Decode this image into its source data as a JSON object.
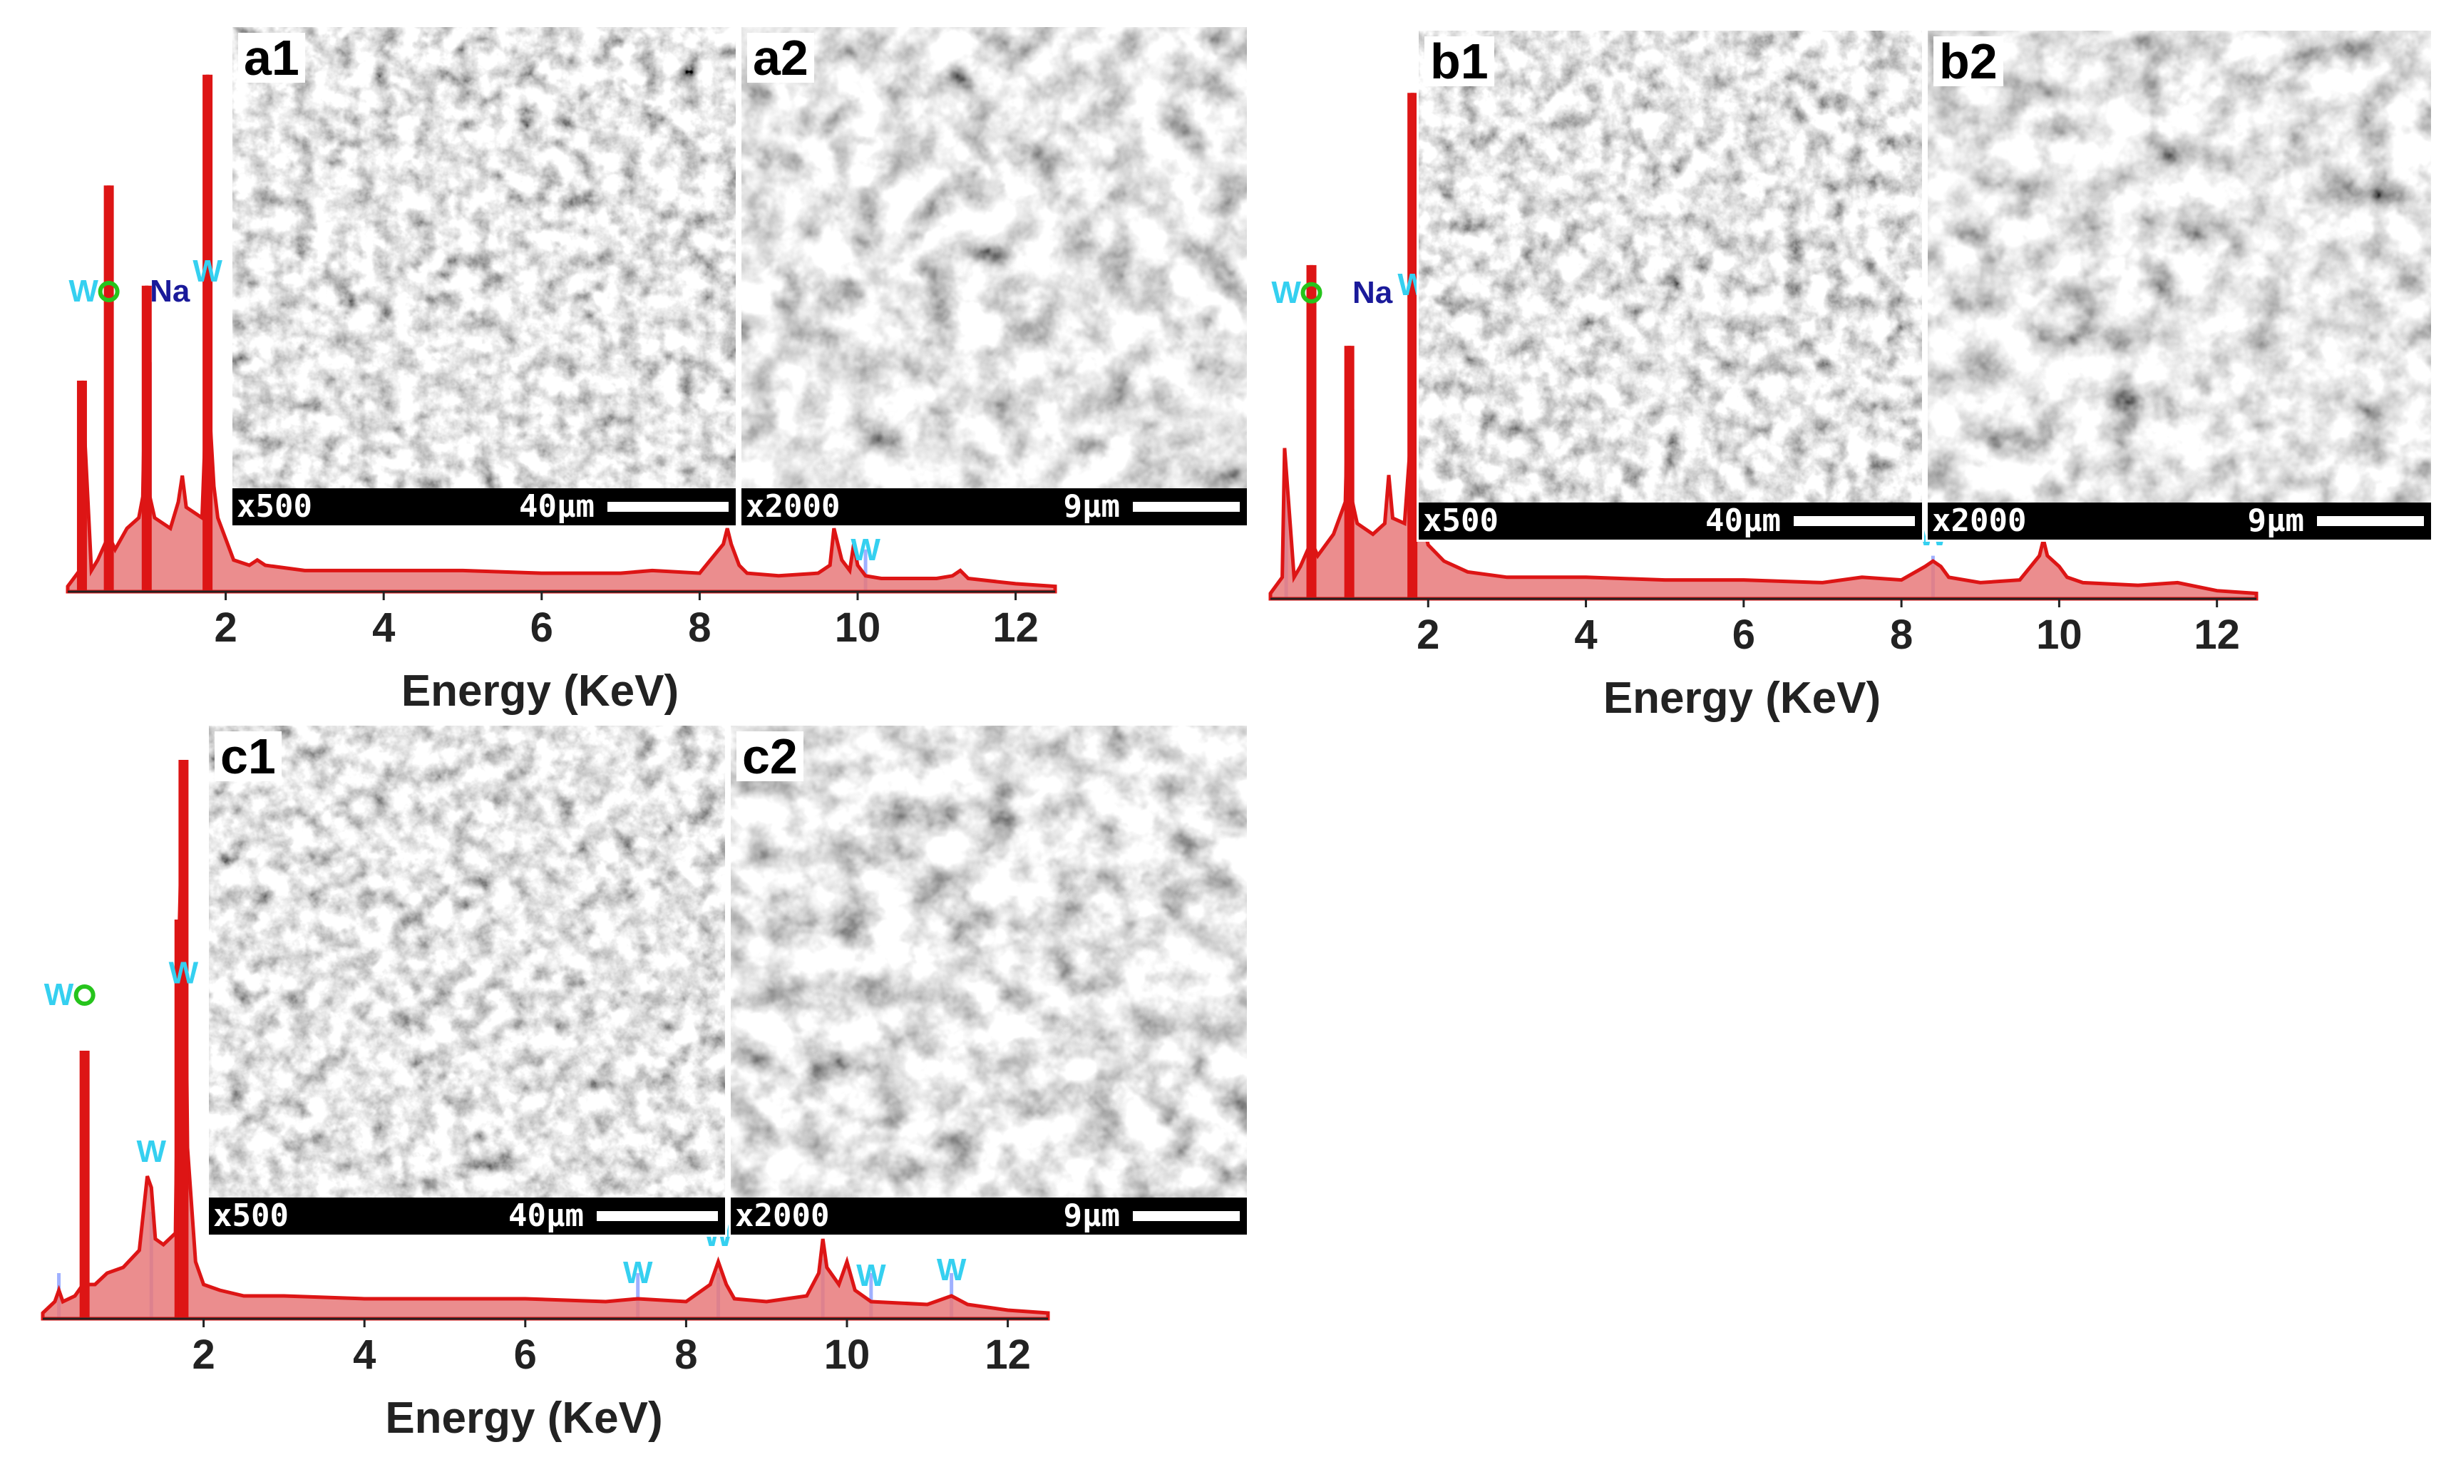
{
  "colors": {
    "spectrum": "#dd1515",
    "spectrum_fill": "#e8797a",
    "w_label": "#35d0f0",
    "o_label": "#26c41c",
    "na_label": "#1a1a9a",
    "w_line": "#9fb0ff",
    "o_line": "#e0a060",
    "na_line": "#b02070"
  },
  "chart_data": [
    {
      "id": "a",
      "type": "area",
      "xlabel": "Energy (KeV)",
      "xlim": [
        0,
        12.5
      ],
      "ylim": [
        0,
        100
      ],
      "xticks": [
        "2",
        "4",
        "6",
        "8",
        "10",
        "12"
      ],
      "spectrum": {
        "x": [
          0.0,
          0.15,
          0.18,
          0.3,
          0.38,
          0.5,
          0.52,
          0.54,
          0.6,
          0.75,
          0.9,
          0.95,
          1.0,
          1.04,
          1.1,
          1.3,
          1.4,
          1.45,
          1.5,
          1.7,
          1.74,
          1.77,
          1.8,
          1.85,
          1.9,
          2.0,
          2.1,
          2.3,
          2.4,
          2.5,
          3,
          4,
          5,
          6,
          7,
          7.4,
          8.0,
          8.3,
          8.35,
          8.4,
          8.5,
          8.6,
          9.0,
          9.5,
          9.65,
          9.7,
          9.8,
          9.9,
          9.95,
          10.0,
          10.1,
          10.3,
          11.0,
          11.2,
          11.3,
          11.4,
          12.0,
          12.5
        ],
        "y": [
          1,
          4,
          40,
          4,
          6,
          10,
          77,
          10,
          8,
          12,
          14,
          18,
          58,
          18,
          14,
          12,
          17,
          22,
          16,
          14,
          30,
          98,
          33,
          20,
          14,
          10,
          6,
          5,
          6,
          5,
          4,
          4,
          4,
          3.5,
          3.5,
          4,
          3.5,
          9,
          12,
          9,
          5,
          3.5,
          3,
          3.5,
          5,
          12,
          6,
          4,
          9,
          5,
          3,
          2.5,
          2.5,
          3,
          4,
          2.5,
          1.5,
          1
        ]
      },
      "peaks": [
        {
          "element": "W",
          "energy": 0.2
        },
        {
          "element": "O",
          "energy": 0.52
        },
        {
          "element": "Na",
          "energy": 1.04
        },
        {
          "element": "W",
          "energy": 1.77
        },
        {
          "element": "W",
          "energy": 10.1
        }
      ],
      "images": [
        {
          "id": "a1",
          "magnification": "x500",
          "scale": "40µm"
        },
        {
          "id": "a2",
          "magnification": "x2000",
          "scale": "9µm"
        }
      ]
    },
    {
      "id": "b",
      "type": "area",
      "xlabel": "Energy (KeV)",
      "xlim": [
        0,
        12.5
      ],
      "ylim": [
        0,
        100
      ],
      "xticks": [
        "2",
        "4",
        "6",
        "8",
        "10",
        "12"
      ],
      "spectrum": {
        "x": [
          0.0,
          0.15,
          0.18,
          0.3,
          0.38,
          0.5,
          0.52,
          0.54,
          0.6,
          0.8,
          0.95,
          1.0,
          1.04,
          1.1,
          1.3,
          1.45,
          1.5,
          1.55,
          1.7,
          1.78,
          1.8,
          1.83,
          1.9,
          2.0,
          2.2,
          2.5,
          3,
          4,
          5,
          6,
          7,
          7.5,
          8.0,
          8.3,
          8.4,
          8.5,
          8.6,
          9.0,
          9.5,
          9.75,
          9.8,
          9.85,
          10.0,
          10.1,
          10.3,
          11.0,
          11.5,
          12.0,
          12.5
        ],
        "y": [
          1,
          4,
          28,
          4,
          6,
          10,
          62,
          10,
          8,
          12,
          18,
          47,
          18,
          14,
          12,
          14,
          23,
          15,
          14,
          30,
          94,
          30,
          16,
          10,
          7,
          5,
          4,
          4,
          3.5,
          3.5,
          3,
          4,
          3.5,
          6,
          7,
          6,
          4,
          3,
          3.5,
          8,
          11,
          8,
          6,
          4,
          3,
          2.5,
          3,
          1.5,
          1
        ]
      },
      "peaks": [
        {
          "element": "W",
          "energy": 0.2
        },
        {
          "element": "O",
          "energy": 0.52
        },
        {
          "element": "Na",
          "energy": 1.04
        },
        {
          "element": "W",
          "energy": 1.8
        },
        {
          "element": "W",
          "energy": 8.4
        }
      ],
      "images": [
        {
          "id": "b1",
          "magnification": "x500",
          "scale": "40µm"
        },
        {
          "id": "b2",
          "magnification": "x2000",
          "scale": "9µm"
        }
      ]
    },
    {
      "id": "c",
      "type": "area",
      "xlabel": "Energy (KeV)",
      "xlim": [
        0,
        12.5
      ],
      "ylim": [
        0,
        100
      ],
      "xticks": [
        "2",
        "4",
        "6",
        "8",
        "10",
        "12"
      ],
      "spectrum": {
        "x": [
          0.0,
          0.15,
          0.2,
          0.25,
          0.4,
          0.5,
          0.52,
          0.54,
          0.65,
          0.8,
          1.0,
          1.2,
          1.3,
          1.35,
          1.4,
          1.5,
          1.65,
          1.7,
          1.75,
          1.8,
          1.9,
          2.0,
          2.2,
          2.5,
          3,
          4,
          5,
          6,
          7,
          7.4,
          8.0,
          8.3,
          8.4,
          8.5,
          8.6,
          9.0,
          9.5,
          9.65,
          9.7,
          9.75,
          9.9,
          10.0,
          10.1,
          10.3,
          11.0,
          11.3,
          11.5,
          12.0,
          12.5
        ],
        "y": [
          1,
          3,
          5,
          3,
          4,
          6,
          47,
          6,
          6,
          8,
          9,
          12,
          25,
          23,
          14,
          13,
          15,
          70,
          98,
          30,
          10,
          6,
          5,
          4,
          4,
          3.5,
          3.5,
          3.5,
          3,
          3.5,
          3,
          6,
          10,
          6,
          3.5,
          3,
          4,
          8,
          14,
          9,
          6,
          10,
          5,
          3,
          2.5,
          4,
          2.5,
          1.5,
          1
        ]
      },
      "peaks": [
        {
          "element": "W",
          "energy": 0.2
        },
        {
          "element": "O",
          "energy": 0.52
        },
        {
          "element": "W",
          "energy": 1.35
        },
        {
          "element": "W",
          "energy": 1.75
        },
        {
          "element": "W",
          "energy": 7.4
        },
        {
          "element": "W",
          "energy": 8.4
        },
        {
          "element": "W",
          "energy": 9.7
        },
        {
          "element": "W",
          "energy": 10.3
        },
        {
          "element": "W",
          "energy": 11.3
        }
      ],
      "images": [
        {
          "id": "c1",
          "magnification": "x500",
          "scale": "40µm"
        },
        {
          "id": "c2",
          "magnification": "x2000",
          "scale": "9µm"
        }
      ]
    }
  ]
}
